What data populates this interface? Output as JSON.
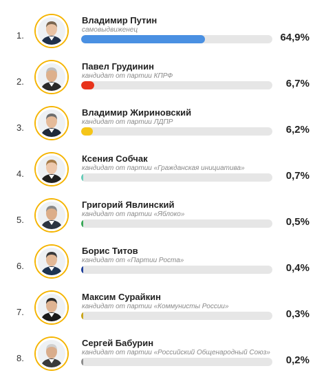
{
  "chart_data": {
    "type": "bar",
    "categories": [
      "Владимир Путин",
      "Павел Грудинин",
      "Владимир Жириновский",
      "Ксения Собчак",
      "Григорий Явлинский",
      "Борис Титов",
      "Максим Сурайкин",
      "Сергей Бабурин"
    ],
    "values": [
      64.9,
      6.7,
      6.2,
      0.7,
      0.5,
      0.4,
      0.3,
      0.2
    ],
    "xlim": [
      0,
      100
    ],
    "orientation": "horizontal"
  },
  "rows": [
    {
      "rank": "1.",
      "name": "Владимир Путин",
      "subtitle": "самовыдвиженец",
      "value_label": "64,9%",
      "color": "#4a90e2",
      "icon": "portrait-icon"
    },
    {
      "rank": "2.",
      "name": "Павел Грудинин",
      "subtitle": "кандидат от партии КПРФ",
      "value_label": "6,7%",
      "color": "#e8341c",
      "icon": "portrait-icon"
    },
    {
      "rank": "3.",
      "name": "Владимир Жириновский",
      "subtitle": "кандидат от партии ЛДПР",
      "value_label": "6,2%",
      "color": "#f5c518",
      "icon": "portrait-icon"
    },
    {
      "rank": "4.",
      "name": "Ксения Собчак",
      "subtitle": "кандидат от партии «Гражданская инициатива»",
      "value_label": "0,7%",
      "color": "#66ccb8",
      "icon": "portrait-icon"
    },
    {
      "rank": "5.",
      "name": "Григорий Явлинский",
      "subtitle": "кандидат от партии «Яблоко»",
      "value_label": "0,5%",
      "color": "#3aa858",
      "icon": "portrait-icon"
    },
    {
      "rank": "6.",
      "name": "Борис Титов",
      "subtitle": "кандидат от «Партии Роста»",
      "value_label": "0,4%",
      "color": "#1f3f9a",
      "icon": "portrait-icon"
    },
    {
      "rank": "7.",
      "name": "Максим Сурайкин",
      "subtitle": "кандидат от партии «Коммунисты России»",
      "value_label": "0,3%",
      "color": "#c9a51a",
      "icon": "portrait-icon"
    },
    {
      "rank": "8.",
      "name": "Сергей Бабурин",
      "subtitle": "кандидат от партии «Российский Общенародный Союз»",
      "value_label": "0,2%",
      "color": "#8c8c8c",
      "icon": "portrait-icon"
    }
  ],
  "ring_color": "#f5b400"
}
